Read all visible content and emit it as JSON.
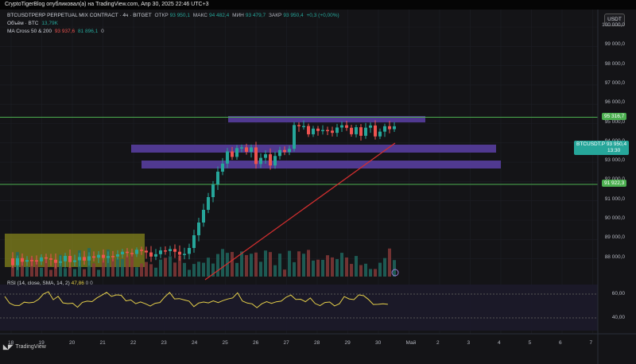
{
  "header": {
    "title": "CryptoTigerBlog опубликовал(а) на TradingView.com, Апр 30, 2025 22:46 UTC+3"
  },
  "legend": {
    "symbol_line": {
      "symbol": "BTCUSDTPERP PERPETUAL MIX CONTRACT · 4ч · BITGET",
      "open_label": "ОТКР",
      "open_value": "93 950,1",
      "high_label": "МАКС",
      "high_value": "94 482,4",
      "low_label": "МИН",
      "low_value": "93 479,7",
      "close_label": "ЗАКР",
      "close_value": "93 950,4",
      "change": "+0,3 (+0,00%)"
    },
    "volume_line": {
      "label": "Объём · BTC",
      "value": "13,79K"
    },
    "ma_line": {
      "label": "MA Cross 50 & 200",
      "value1": "93 937,6",
      "value2": "81 896,1",
      "value3": "0"
    }
  },
  "rsi_legend": {
    "label": "RSI (14, close, SMA, 14, 2)",
    "value": "47,86",
    "extra1": "0",
    "extra2": "0"
  },
  "currency_button": "USDT",
  "price_axis": {
    "ticks": [
      "100 000,0",
      "99 000,0",
      "98 000,0",
      "97 000,0",
      "96 000,0",
      "95 000,0",
      "94 000,0",
      "93 000,0",
      "92 000,0",
      "91 000,0",
      "90 000,0",
      "89 000,0",
      "88 000,0"
    ],
    "rsi_ticks": [
      "60,00",
      "40,00"
    ]
  },
  "price_tags": {
    "resistance": "95 316,7",
    "current_symbol": "BTCUSDT.P",
    "current_price": "93 950,4",
    "countdown": "13:30",
    "support": "91 922,3"
  },
  "time_axis": [
    "18",
    "19",
    "20",
    "21",
    "22",
    "23",
    "24",
    "25",
    "26",
    "27",
    "28",
    "29",
    "30",
    "Май",
    "2",
    "3",
    "4",
    "5",
    "6",
    "7"
  ],
  "footer": {
    "brand": "TradingView"
  },
  "colors": {
    "up": "#26a69a",
    "down": "#ef5350",
    "zone": "#5b3fa6",
    "yellow_zone": "#8a8a1c",
    "level_line": "#4caf50",
    "ma_line": "#d32f2f",
    "rsi_line": "#e6d04a"
  }
}
